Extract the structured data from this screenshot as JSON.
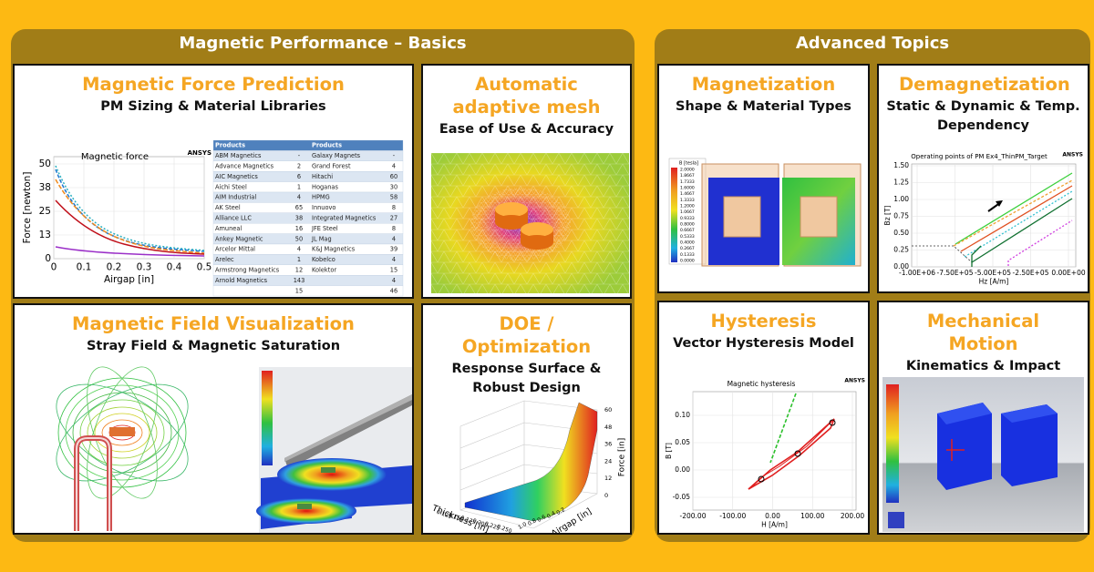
{
  "sections": [
    {
      "title": "Magnetic Performance – Basics",
      "cards": [
        {
          "title": "Magnetic Force Prediction",
          "subtitle": "PM Sizing & Material Libraries",
          "plot": {
            "title": "Magnetic force",
            "brand": "ANSYS",
            "y_label": "Force [newton]",
            "x_label": "Airgap [in]",
            "yticks": [
              "0",
              "13",
              "25",
              "38",
              "50"
            ],
            "xticks": [
              "0",
              "0.1",
              "0.2",
              "0.3",
              "0.4",
              "0.5"
            ]
          },
          "table": {
            "header": [
              "Products",
              null,
              "Products",
              null
            ],
            "rows": [
              [
                "ABM Magnetics",
                "-",
                "Galaxy Magnets",
                "-"
              ],
              [
                "Advance Magnetics",
                "2",
                "Grand Forest",
                "4"
              ],
              [
                "AIC Magnetics",
                "6",
                "Hitachi",
                "60"
              ],
              [
                "Aichi Steel",
                "1",
                "Hoganas",
                "30"
              ],
              [
                "AIM Industrial",
                "4",
                "HPMG",
                "58"
              ],
              [
                "AK Steel",
                "65",
                "Innuovo",
                "8"
              ],
              [
                "Alliance LLC",
                "38",
                "Integrated Magnetics",
                "27"
              ],
              [
                "Amuneal",
                "16",
                "JFE Steel",
                "8"
              ],
              [
                "Ankey Magnetic",
                "50",
                "JL Mag",
                "4"
              ],
              [
                "Arcelor Mittal",
                "4",
                "K&J Magnetics",
                "39"
              ],
              [
                "Arelec",
                "1",
                "Kobelco",
                "4"
              ],
              [
                "Armstrong Magnetics",
                "12",
                "Kolektor",
                "15"
              ],
              [
                "Arnold Magnetics",
                "143",
                null,
                "4"
              ],
              [
                null,
                "15",
                null,
                "46"
              ]
            ]
          }
        },
        {
          "title": "Automatic adaptive mesh",
          "subtitle": "Ease of Use & Accuracy"
        },
        {
          "title": "Magnetic Field Visualization",
          "subtitle": "Stray Field & Magnetic Saturation"
        },
        {
          "title": "DOE / Optimization",
          "subtitle": "Response Surface & Robust Design",
          "plot": {
            "z_label": "Force [in]",
            "x_label": "Thickness [in]",
            "y_label": "Airgap [in]",
            "zticks": [
              "0",
              "12",
              "24",
              "36",
              "48",
              "60"
            ],
            "xticks": [
              "0.125",
              "0.150",
              "0.175",
              "0.200",
              "0.225",
              "0.250"
            ],
            "yticks": [
              "0.2",
              "0.4",
              "0.6",
              "0.8",
              "1.0"
            ]
          }
        }
      ]
    },
    {
      "title": "Advanced Topics",
      "cards": [
        {
          "title": "Magnetization",
          "subtitle": "Shape & Material Types",
          "legend": {
            "title": "B [tesla]",
            "levels": [
              "2.0000",
              "1.8667",
              "1.7333",
              "1.6000",
              "1.4667",
              "1.3333",
              "1.2000",
              "1.0667",
              "0.9333",
              "0.8000",
              "0.6667",
              "0.5333",
              "0.4000",
              "0.2667",
              "0.1333",
              "0.0000"
            ]
          }
        },
        {
          "title": "Demagnetization",
          "subtitle": "Static & Dynamic & Temp. Dependency",
          "plot": {
            "title": "Operating points of PM Ex4_ThinPM_Target",
            "brand": "ANSYS",
            "y_label": "Bz [T]",
            "x_label": "Hz [A/m]",
            "yticks": [
              "0.00",
              "0.25",
              "0.50",
              "0.75",
              "1.00",
              "1.25",
              "1.50"
            ],
            "xticks": [
              "-1.00E+06",
              "-7.50E+05",
              "-5.00E+05",
              "-2.50E+05",
              "0.00E+00"
            ]
          }
        },
        {
          "title": "Hysteresis",
          "subtitle": "Vector Hysteresis Model",
          "plot": {
            "title": "Magnetic hysteresis",
            "brand": "ANSYS",
            "y_label": "B [T]",
            "x_label": "H [A/m]",
            "yticks": [
              "-0.05",
              "0.00",
              "0.05",
              "0.10"
            ],
            "xticks": [
              "-200.00",
              "-100.00",
              "0.00",
              "100.00",
              "200.00"
            ]
          }
        },
        {
          "title": "Mechanical Motion",
          "subtitle": "Kinematics & Impact Stress"
        }
      ]
    }
  ]
}
